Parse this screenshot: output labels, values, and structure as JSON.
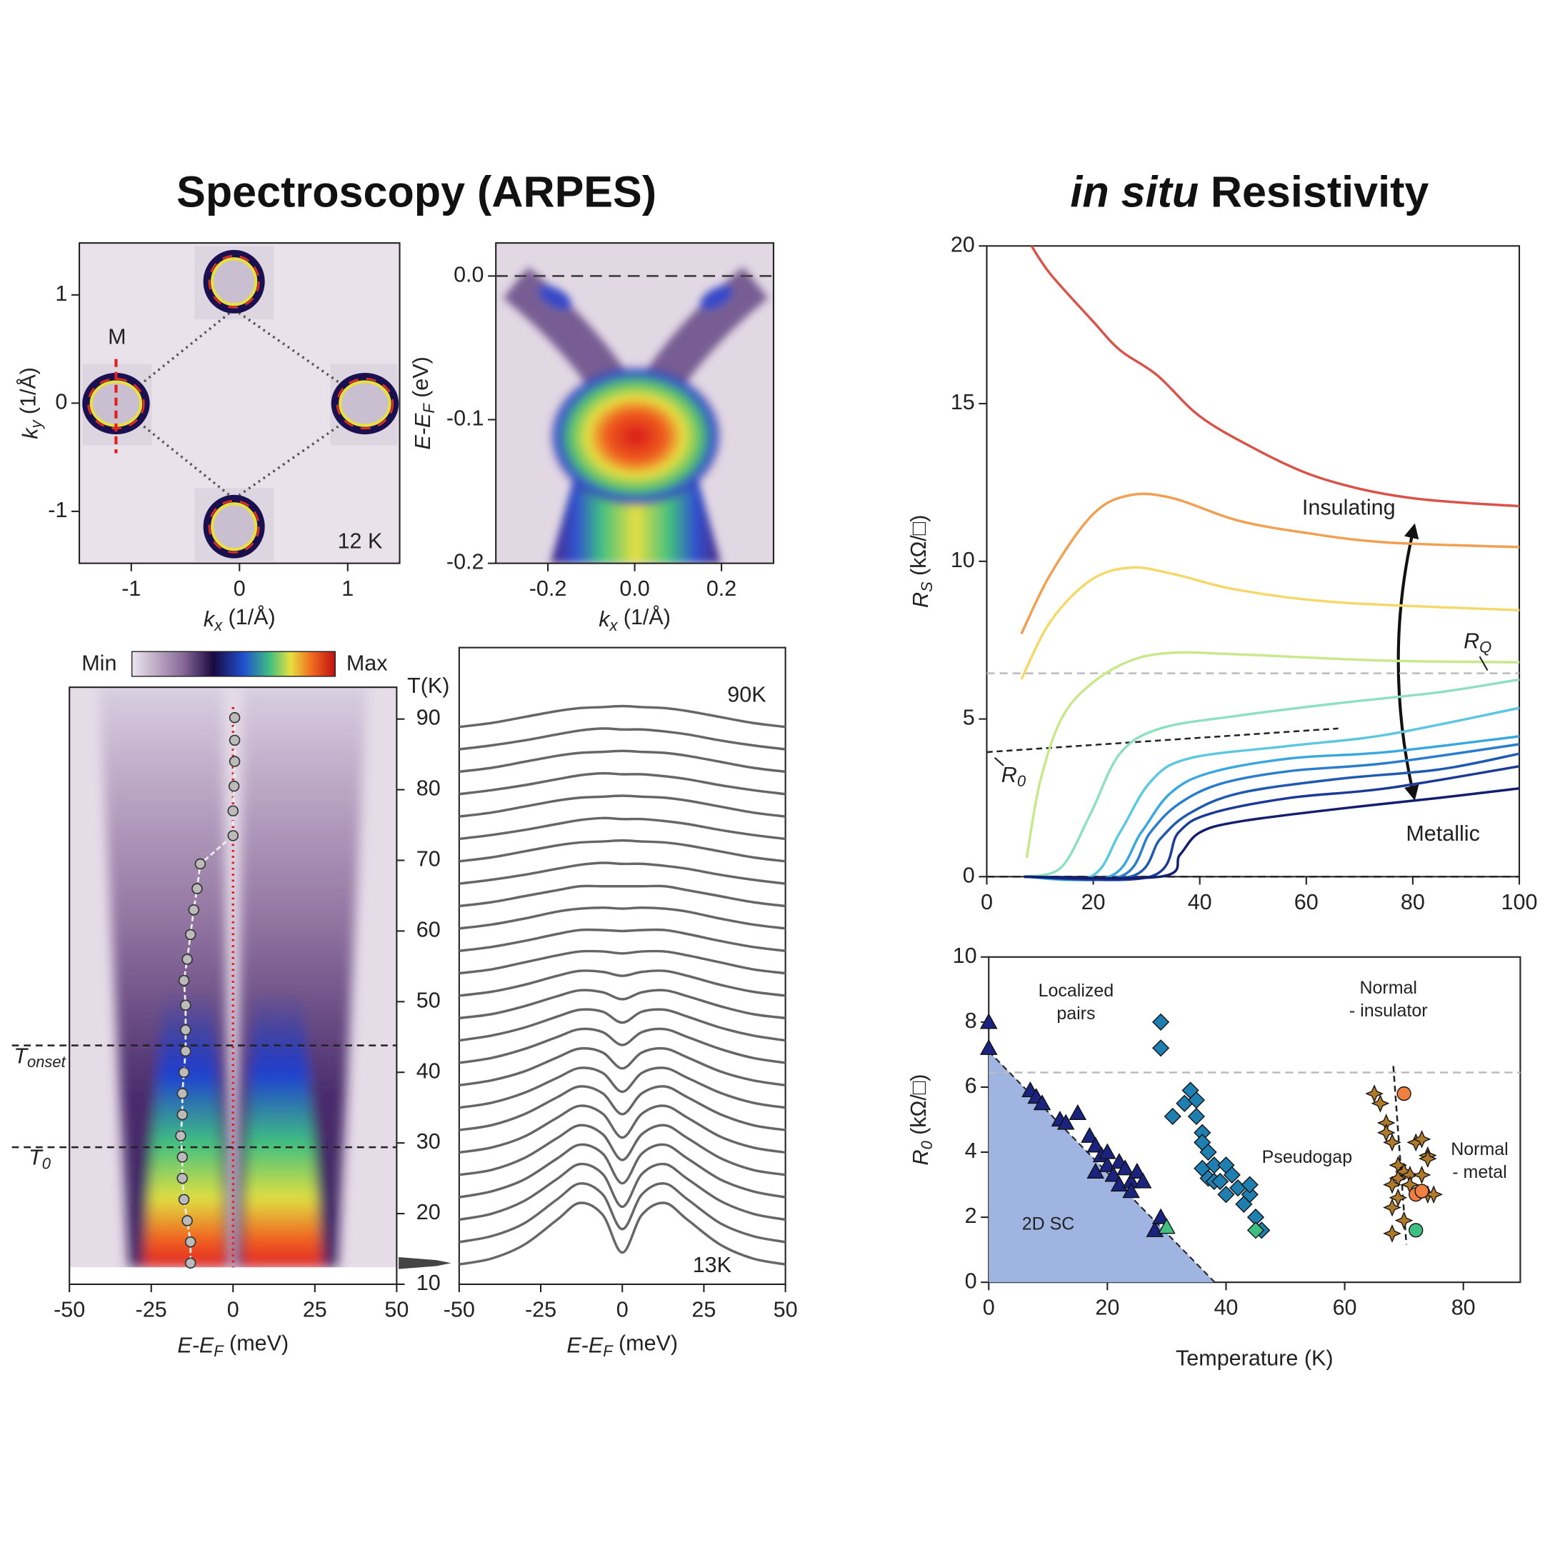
{
  "titles": {
    "left": "Spectroscopy (ARPES)",
    "right_italic": "in situ",
    "right": "Resistivity"
  },
  "chart_data": [
    {
      "type": "fermi_map",
      "x_label": {
        "symbol": "k",
        "sub": "x",
        "unit": "(1/Å)"
      },
      "y_label": {
        "symbol": "k",
        "sub": "y",
        "unit": "(1/Å)"
      },
      "xlim": [
        -1.48,
        1.48
      ],
      "ylim": [
        -1.48,
        1.48
      ],
      "xticks": [
        -1,
        0,
        1
      ],
      "yticks": [
        -1,
        0,
        1
      ],
      "annotations": {
        "point": "M",
        "temperature": "12 K"
      }
    },
    {
      "type": "dispersion_map",
      "x_label": {
        "symbol": "k",
        "sub": "x",
        "unit": "(1/Å)"
      },
      "y_label": {
        "symbol": "E-E",
        "sub": "F",
        "unit": "(eV)"
      },
      "xlim": [
        -0.32,
        0.32
      ],
      "ylim": [
        -0.2,
        0.023
      ],
      "xticks": [
        -0.2,
        {
          "value": 0,
          "label": "0.0"
        },
        0.2
      ],
      "yticks": [
        {
          "value": 0,
          "label": "0.0"
        },
        -0.1,
        -0.2
      ],
      "fermi_level": 0
    },
    {
      "type": "temperature_map",
      "colorbar": {
        "min_label": "Min",
        "max_label": "Max"
      },
      "x_label": {
        "symbol": "E-E",
        "sub": "F",
        "unit": "(meV)"
      },
      "y_label": "T(K)",
      "xlim": [
        -50,
        50
      ],
      "ylim": [
        10,
        94.5
      ],
      "xticks": [
        -50,
        -25,
        0,
        25,
        50
      ],
      "yticks": [
        10,
        20,
        30,
        40,
        50,
        60,
        70,
        80,
        90
      ],
      "markers": [
        {
          "label": {
            "symbol": "T",
            "sub": "onset"
          },
          "value": 43.8
        },
        {
          "label": {
            "symbol": "T",
            "sub": "0"
          },
          "value": 29.4
        }
      ],
      "fermi_level": 0,
      "arrow_temperature": 13,
      "gap": {
        "x": [
          0.5,
          0.5,
          0.5,
          0.3,
          0,
          0,
          -10,
          -11,
          -12,
          -13,
          -14,
          -15,
          -14.5,
          -14.5,
          -14.5,
          -15,
          -15.5,
          -15.5,
          -16,
          -15.5,
          -15.5,
          -15,
          -14,
          -13,
          -13
        ],
        "y": [
          90.2,
          87,
          84,
          80.5,
          77,
          73.5,
          69.5,
          66,
          63,
          59.5,
          56,
          53,
          49.5,
          46,
          43,
          40,
          37,
          34,
          31,
          28,
          25,
          22,
          19,
          16,
          13
        ]
      }
    },
    {
      "type": "edc_stack",
      "x_label": {
        "symbol": "E-E",
        "sub": "F",
        "unit": "(meV)"
      },
      "xlim": [
        -50,
        50
      ],
      "xticks": [
        -50,
        -25,
        0,
        25,
        50
      ],
      "labels": {
        "top": "90K",
        "bottom": "13K"
      },
      "color": "#666666",
      "x": [
        -50,
        -40,
        -30,
        -20,
        -13,
        -6,
        0,
        6,
        13,
        20,
        30,
        40,
        50
      ],
      "series": [
        {
          "values": [
            0,
            4,
            10,
            16,
            19,
            20,
            21,
            20,
            19,
            16,
            10,
            4,
            0
          ]
        },
        {
          "values": [
            0,
            4,
            9,
            15,
            19,
            21,
            20,
            20,
            18,
            15,
            9,
            4,
            0
          ]
        },
        {
          "values": [
            0,
            4,
            10,
            16,
            19,
            20,
            21,
            20,
            19,
            16,
            10,
            4,
            0
          ]
        },
        {
          "values": [
            0,
            4,
            9,
            15,
            19,
            21,
            20,
            20,
            18,
            15,
            9,
            4,
            0
          ]
        },
        {
          "values": [
            0,
            4,
            10,
            16,
            19,
            20,
            21,
            20,
            19,
            16,
            10,
            4,
            0
          ]
        },
        {
          "values": [
            0,
            4,
            9,
            15,
            19,
            21,
            20,
            20,
            18,
            15,
            9,
            4,
            0
          ]
        },
        {
          "values": [
            0,
            4,
            10,
            16,
            19,
            20,
            21,
            20,
            19,
            16,
            10,
            4,
            0
          ]
        },
        {
          "values": [
            0,
            4,
            9,
            15,
            19,
            21,
            20,
            20,
            18,
            15,
            9,
            4,
            0
          ]
        },
        {
          "values": [
            0,
            4,
            10,
            16,
            20,
            20,
            20,
            20,
            20,
            16,
            10,
            4,
            0
          ]
        },
        {
          "values": [
            0,
            4,
            10,
            17,
            20,
            21,
            20,
            21,
            20,
            17,
            10,
            4,
            0
          ]
        },
        {
          "values": [
            0,
            4,
            10,
            17,
            21,
            21,
            20,
            21,
            21,
            17,
            10,
            4,
            0
          ]
        },
        {
          "values": [
            0,
            4,
            11,
            18,
            22,
            22,
            20,
            22,
            22,
            18,
            11,
            4,
            0
          ]
        },
        {
          "values": [
            0,
            4,
            11,
            20,
            25,
            24,
            20,
            24,
            25,
            20,
            11,
            4,
            0
          ]
        },
        {
          "values": [
            0,
            4,
            12,
            22,
            28,
            26,
            19,
            26,
            28,
            22,
            12,
            4,
            0
          ]
        },
        {
          "values": [
            0,
            5,
            13,
            24,
            31,
            29,
            18,
            29,
            31,
            24,
            13,
            5,
            0
          ]
        },
        {
          "values": [
            0,
            5,
            14,
            26,
            34,
            31,
            18,
            31,
            34,
            26,
            14,
            5,
            0
          ]
        },
        {
          "values": [
            0,
            5,
            14,
            28,
            37,
            33,
            17,
            33,
            37,
            28,
            14,
            5,
            0
          ]
        },
        {
          "values": [
            0,
            5,
            15,
            30,
            40,
            35,
            16,
            35,
            40,
            30,
            15,
            5,
            0
          ]
        },
        {
          "values": [
            0,
            5,
            16,
            33,
            44,
            37,
            16,
            37,
            44,
            33,
            16,
            5,
            0
          ]
        },
        {
          "values": [
            0,
            5,
            16,
            35,
            47,
            39,
            15,
            39,
            47,
            35,
            16,
            5,
            0
          ]
        },
        {
          "values": [
            0,
            5,
            17,
            37,
            50,
            41,
            15,
            41,
            50,
            37,
            17,
            5,
            0
          ]
        },
        {
          "values": [
            0,
            6,
            18,
            39,
            53,
            44,
            14,
            44,
            53,
            39,
            18,
            6,
            0
          ]
        },
        {
          "values": [
            0,
            6,
            19,
            41,
            56,
            46,
            13,
            46,
            56,
            41,
            19,
            6,
            0
          ]
        },
        {
          "values": [
            0,
            6,
            19,
            43,
            59,
            48,
            13,
            48,
            59,
            43,
            19,
            6,
            0
          ]
        },
        {
          "values": [
            0,
            6,
            20,
            45,
            62,
            50,
            12,
            50,
            62,
            45,
            20,
            6,
            0
          ]
        }
      ]
    },
    {
      "type": "line",
      "y_label": {
        "symbol": "R",
        "sub": "S",
        "unit": "(kΩ/□)"
      },
      "xlim": [
        0,
        100
      ],
      "ylim": [
        0,
        20
      ],
      "xticks": [
        0,
        20,
        40,
        60,
        80,
        100
      ],
      "yticks": [
        0,
        5,
        10,
        15,
        20
      ],
      "r_q": 6.45,
      "zero": 0,
      "r0_line": {
        "x": [
          0,
          66
        ],
        "y": [
          3.95,
          4.7
        ]
      },
      "annotations": {
        "insulating": "Insulating",
        "metallic": "Metallic",
        "r_q": {
          "symbol": "R",
          "sub": "Q"
        },
        "r_0": {
          "symbol": "R",
          "sub": "0"
        }
      },
      "series": [
        {
          "color": "#d9534a",
          "x": [
            8.4,
            12,
            20,
            25,
            32,
            40,
            50,
            60,
            70,
            80,
            90,
            100
          ],
          "values": [
            20,
            19.1,
            17.6,
            16.7,
            15.9,
            14.6,
            13.6,
            12.8,
            12.3,
            12.0,
            11.85,
            11.75
          ]
        },
        {
          "color": "#f0a050",
          "x": [
            6.5,
            12,
            20,
            27,
            35,
            47,
            60,
            75,
            100
          ],
          "values": [
            7.7,
            9.6,
            11.5,
            12.1,
            12.0,
            11.3,
            10.9,
            10.6,
            10.45
          ]
        },
        {
          "color": "#f5d86a",
          "x": [
            6.5,
            12,
            19.5,
            27,
            35,
            47,
            66,
            100
          ],
          "values": [
            6.26,
            8.1,
            9.4,
            9.8,
            9.6,
            9.1,
            8.7,
            8.45
          ]
        },
        {
          "color": "#c8e88a",
          "x": [
            7.5,
            10,
            14,
            19.5,
            27,
            35,
            47,
            75,
            100
          ],
          "values": [
            0.6,
            3.0,
            5.0,
            6.1,
            6.85,
            7.1,
            7.05,
            6.85,
            6.8
          ]
        },
        {
          "color": "#8ee0c0",
          "x": [
            7.5,
            14,
            19.5,
            25,
            32.6,
            47,
            66,
            85,
            100
          ],
          "values": [
            0,
            0.3,
            2.0,
            3.9,
            4.7,
            5.1,
            5.5,
            5.85,
            6.25
          ]
        },
        {
          "color": "#5cc8e0",
          "x": [
            7,
            19.5,
            25,
            30.7,
            38,
            57,
            75,
            100
          ],
          "values": [
            0,
            0,
            1.4,
            3.0,
            3.75,
            4.15,
            4.5,
            5.35
          ]
        },
        {
          "color": "#3aa8e0",
          "x": [
            7,
            23,
            29,
            34.5,
            42,
            57,
            75,
            100
          ],
          "values": [
            0,
            0,
            1.4,
            2.65,
            3.3,
            3.75,
            3.95,
            4.45
          ]
        },
        {
          "color": "#2a7ccc",
          "x": [
            7,
            25,
            30.7,
            36,
            44,
            57,
            75,
            100
          ],
          "values": [
            0,
            0,
            1.4,
            2.3,
            2.95,
            3.35,
            3.6,
            4.2
          ]
        },
        {
          "color": "#1f5ab0",
          "x": [
            7,
            27,
            32.6,
            38,
            47.5,
            66,
            85,
            100
          ],
          "values": [
            0,
            0,
            1.2,
            2.0,
            2.65,
            3.1,
            3.4,
            3.9
          ]
        },
        {
          "color": "#1a3a96",
          "x": [
            7,
            30.7,
            36,
            42,
            57,
            75,
            100
          ],
          "values": [
            0,
            0,
            1.4,
            2.0,
            2.5,
            2.8,
            3.5
          ]
        },
        {
          "color": "#141e70",
          "x": [
            7,
            32.6,
            36.3,
            40,
            47.5,
            66,
            85,
            100
          ],
          "values": [
            0,
            0,
            0.7,
            1.4,
            1.75,
            2.15,
            2.5,
            2.8
          ]
        }
      ]
    },
    {
      "type": "scatter",
      "x_label": "Temperature (K)",
      "y_label": {
        "symbol": "R",
        "sub": "0",
        "unit": "(kΩ/□)"
      },
      "xlim": [
        0,
        89.6
      ],
      "ylim": [
        0,
        10
      ],
      "xticks": [
        0,
        20,
        40,
        60,
        80
      ],
      "yticks": [
        0,
        2,
        4,
        6,
        8,
        10
      ],
      "r_q": 6.45,
      "sc_region": {
        "x": [
          0,
          38.1
        ],
        "y": [
          7.1,
          0
        ],
        "color": "#9fb4e0"
      },
      "boundary": {
        "x": [
          68.2,
          70.4
        ],
        "y": [
          6.65,
          1.16
        ]
      },
      "regions": {
        "localized": [
          "Localized",
          "pairs"
        ],
        "normal_insulator": [
          "Normal",
          "- insulator"
        ],
        "pseudogap": "Pseudogap",
        "normal_metal": [
          "Normal",
          "- metal"
        ],
        "sc": "2D SC"
      },
      "series": [
        {
          "marker": "triangle",
          "color": "#1a237e",
          "x": [
            0,
            0,
            7,
            8,
            9,
            12,
            13,
            15,
            17,
            18,
            18,
            19,
            20,
            20,
            21,
            22,
            22,
            23,
            24,
            24,
            25,
            26,
            28,
            29
          ],
          "values": [
            8.0,
            7.2,
            5.9,
            5.7,
            5.5,
            5.0,
            4.9,
            5.2,
            4.5,
            4.2,
            3.4,
            3.9,
            3.6,
            4.0,
            3.3,
            3.7,
            3.0,
            3.5,
            3.1,
            2.8,
            3.4,
            3.1,
            1.6,
            2.0
          ]
        },
        {
          "marker": "triangle",
          "color": "#40c080",
          "x": [
            30
          ],
          "values": [
            1.7
          ]
        },
        {
          "marker": "diamond",
          "color": "#1e7fb0",
          "x": [
            29,
            29,
            31,
            33,
            34,
            35,
            35,
            36,
            36,
            37,
            36,
            37,
            38,
            38,
            39,
            40,
            40,
            41,
            42,
            43,
            44,
            44,
            45,
            46
          ],
          "values": [
            8.0,
            7.2,
            5.1,
            5.5,
            5.9,
            5.1,
            5.6,
            4.6,
            4.3,
            4.0,
            3.5,
            3.2,
            3.6,
            3.1,
            3.1,
            3.6,
            2.7,
            3.3,
            2.9,
            2.4,
            2.7,
            3.0,
            2.0,
            1.6
          ]
        },
        {
          "marker": "diamond",
          "color": "#40c080",
          "x": [
            45
          ],
          "values": [
            1.6
          ]
        },
        {
          "marker": "star",
          "color": "#b07a2a",
          "x": [
            65,
            66,
            67,
            67,
            68,
            69,
            69,
            70,
            71,
            69,
            68,
            68,
            70,
            72,
            73,
            74,
            73,
            74,
            75,
            74,
            68,
            71
          ],
          "values": [
            5.8,
            5.5,
            4.9,
            4.6,
            4.3,
            3.6,
            3.2,
            3.4,
            3.3,
            2.6,
            2.3,
            1.5,
            1.9,
            4.3,
            4.4,
            3.9,
            3.3,
            2.7,
            2.7,
            3.8,
            3.0,
            3.0
          ]
        },
        {
          "marker": "circle",
          "color": "#f08040",
          "x": [
            70,
            72,
            73
          ],
          "values": [
            5.8,
            2.7,
            2.8
          ]
        },
        {
          "marker": "circle",
          "color": "#40c080",
          "x": [
            72
          ],
          "values": [
            1.6
          ]
        }
      ]
    }
  ]
}
